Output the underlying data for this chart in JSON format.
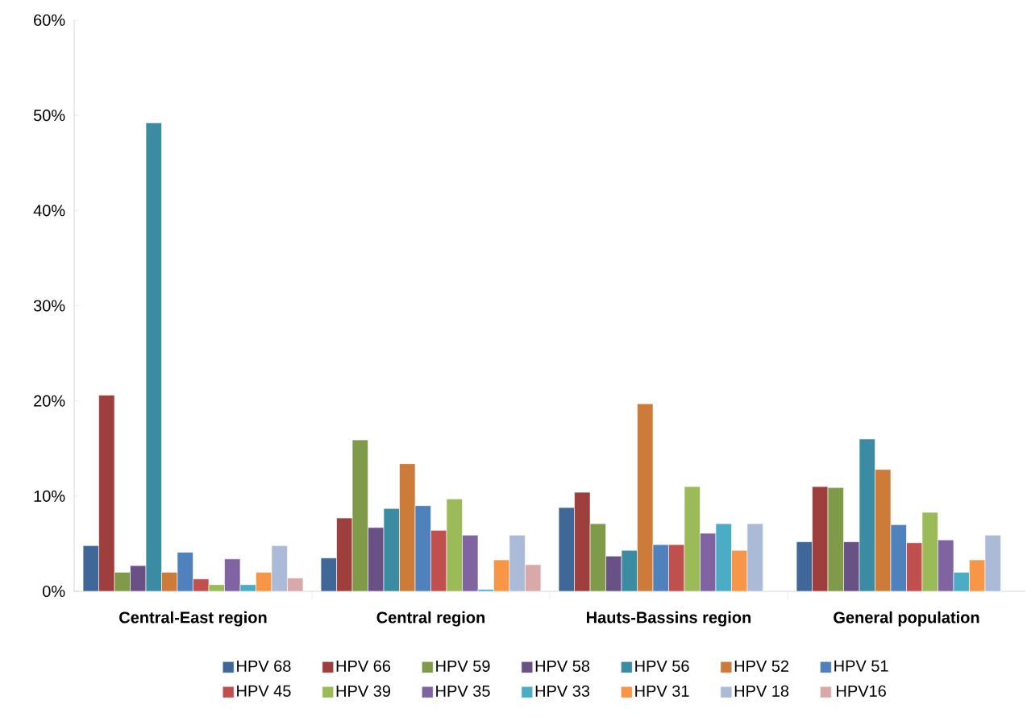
{
  "chart_data": {
    "type": "bar",
    "categories": [
      "Central-East region",
      "Central region",
      "Hauts-Bassins region",
      "General population"
    ],
    "ylim": [
      0,
      60
    ],
    "yticks": [
      {
        "value": 0,
        "label": "0%"
      },
      {
        "value": 10,
        "label": "10%"
      },
      {
        "value": 20,
        "label": "20%"
      },
      {
        "value": 30,
        "label": "30%"
      },
      {
        "value": 40,
        "label": "40%"
      },
      {
        "value": 50,
        "label": "50%"
      },
      {
        "value": 60,
        "label": "60%"
      }
    ],
    "grid": false,
    "legend": "bottom",
    "series": [
      {
        "name": "HPV 68",
        "color": "#3f6797",
        "values": [
          4.8,
          3.5,
          8.8,
          5.2
        ]
      },
      {
        "name": "HPV 66",
        "color": "#9e3f3d",
        "values": [
          20.6,
          7.7,
          10.4,
          11.0
        ]
      },
      {
        "name": "HPV 59",
        "color": "#7f9a48",
        "values": [
          2.0,
          15.9,
          7.1,
          10.9
        ]
      },
      {
        "name": "HPV 58",
        "color": "#6a5185",
        "values": [
          2.7,
          6.7,
          3.7,
          5.2
        ]
      },
      {
        "name": "HPV 56",
        "color": "#3b8ca3",
        "values": [
          49.2,
          8.7,
          4.3,
          16.0
        ]
      },
      {
        "name": "HPV 52",
        "color": "#cd7b38",
        "values": [
          2.0,
          13.4,
          19.7,
          12.8
        ]
      },
      {
        "name": "HPV 51",
        "color": "#4f81bd",
        "values": [
          4.1,
          9.0,
          4.9,
          7.0
        ]
      },
      {
        "name": "HPV 45",
        "color": "#c0504d",
        "values": [
          1.3,
          6.4,
          4.9,
          5.1
        ]
      },
      {
        "name": "HPV 39",
        "color": "#9bbb59",
        "values": [
          0.7,
          9.7,
          11.0,
          8.3
        ]
      },
      {
        "name": "HPV 35",
        "color": "#8064a2",
        "values": [
          3.4,
          5.9,
          6.1,
          5.4
        ]
      },
      {
        "name": "HPV 33",
        "color": "#4bacc6",
        "values": [
          0.7,
          0.2,
          7.1,
          2.0
        ]
      },
      {
        "name": "HPV 31",
        "color": "#f79646",
        "values": [
          2.0,
          3.3,
          4.3,
          3.3
        ]
      },
      {
        "name": "HPV 18",
        "color": "#aabad7",
        "values": [
          4.8,
          5.9,
          7.1,
          5.9
        ]
      },
      {
        "name": "HPV16",
        "color": "#d9a9a9",
        "values": [
          1.4,
          2.8,
          null,
          null
        ]
      }
    ]
  }
}
